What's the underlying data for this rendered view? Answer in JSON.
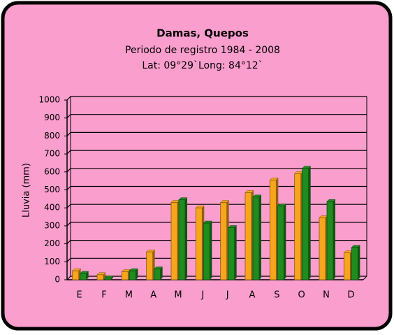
{
  "chart_data": {
    "type": "bar",
    "title": "Damas, Quepos",
    "subtitle": [
      "Periodo de registro 1984 - 2008",
      "Lat: 09°29`Long: 84°12`"
    ],
    "y_label": "Lluvia (mm)",
    "categories": [
      "E",
      "F",
      "M",
      "A",
      "M",
      "J",
      "J",
      "A",
      "S",
      "O",
      "N",
      "D"
    ],
    "series": [
      {
        "color": "#f7a51c",
        "values": [
          50,
          28,
          45,
          155,
          430,
          400,
          430,
          485,
          555,
          590,
          345,
          150
        ]
      },
      {
        "color": "#1e8c1e",
        "values": [
          35,
          10,
          50,
          60,
          445,
          315,
          290,
          460,
          410,
          620,
          435,
          180
        ]
      }
    ],
    "ylim": [
      0,
      1000
    ],
    "yticks": [
      0,
      100,
      200,
      300,
      400,
      500,
      600,
      700,
      800,
      900,
      1000
    ],
    "grid": true
  }
}
